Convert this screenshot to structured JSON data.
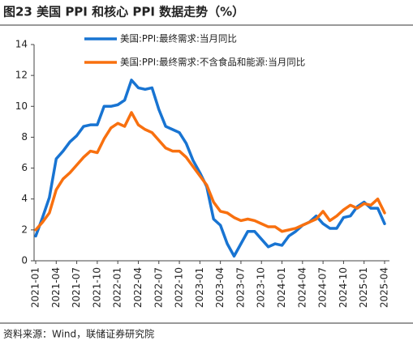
{
  "chart_data": {
    "type": "line",
    "title": "图23 美国 PPI 和核心 PPI 数据走势（%）",
    "source": "资料来源：Wind，联储证券研究院",
    "categories": [
      "2021-01",
      null,
      null,
      "2021-04",
      null,
      null,
      "2021-07",
      null,
      null,
      "2021-10",
      null,
      null,
      "2022-01",
      null,
      null,
      "2022-04",
      null,
      null,
      "2022-07",
      null,
      null,
      "2022-10",
      null,
      null,
      "2023-01",
      null,
      null,
      "2023-04",
      null,
      null,
      "2023-07",
      null,
      null,
      "2023-10",
      null,
      null,
      "2024-01",
      null,
      null,
      "2024-04",
      null,
      null,
      "2024-07",
      null,
      null,
      "2024-10",
      null,
      null,
      "2025-01",
      null,
      null,
      "2025-04"
    ],
    "series": [
      {
        "name": "美国:PPI:最终需求:当月同比",
        "color": "#1874d2",
        "values": [
          1.6,
          2.8,
          4.1,
          6.6,
          7.1,
          7.7,
          8.1,
          8.7,
          8.8,
          8.8,
          10.0,
          10.0,
          10.1,
          10.4,
          11.7,
          11.2,
          11.1,
          11.2,
          9.8,
          8.7,
          8.5,
          8.3,
          7.6,
          6.5,
          5.7,
          4.8,
          2.7,
          2.3,
          1.1,
          0.3,
          1.1,
          1.9,
          1.9,
          1.4,
          0.9,
          1.1,
          1.0,
          1.6,
          1.9,
          2.3,
          2.5,
          2.9,
          2.4,
          2.1,
          2.1,
          2.8,
          2.9,
          3.5,
          3.8,
          3.4,
          3.4,
          2.4
        ]
      },
      {
        "name": "美国:PPI:最终需求:不含食品和能源:当月同比",
        "color": "#f8700f",
        "values": [
          2.0,
          2.5,
          3.1,
          4.6,
          5.3,
          5.7,
          6.2,
          6.7,
          7.1,
          7.0,
          7.9,
          8.6,
          8.9,
          8.7,
          9.6,
          8.8,
          8.5,
          8.3,
          7.8,
          7.3,
          7.1,
          7.1,
          6.7,
          6.1,
          5.5,
          4.9,
          3.8,
          3.2,
          3.1,
          2.8,
          2.6,
          2.7,
          2.6,
          2.4,
          2.2,
          2.2,
          1.9,
          2.0,
          2.1,
          2.3,
          2.5,
          2.7,
          3.2,
          2.6,
          2.9,
          3.3,
          3.6,
          3.4,
          3.7,
          3.6,
          4.0,
          3.1
        ]
      }
    ],
    "ylim": [
      0,
      14
    ],
    "yticks": [
      0,
      2,
      4,
      6,
      8,
      10,
      12,
      14
    ],
    "grid": false
  }
}
